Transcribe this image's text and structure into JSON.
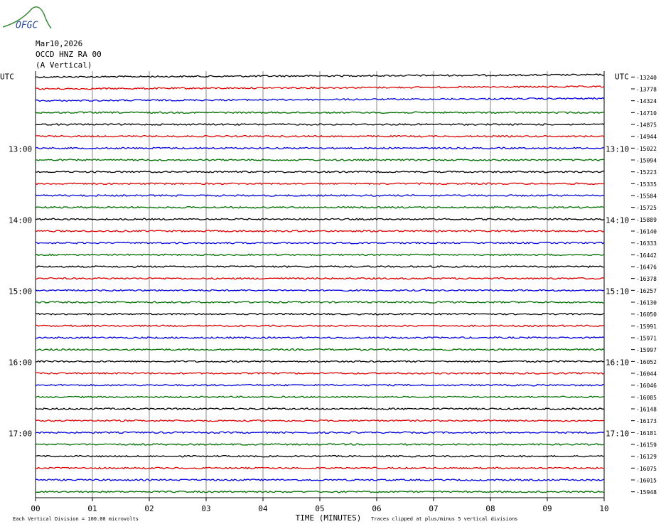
{
  "header": {
    "logo": "OFGC",
    "date": "Mar10,2026",
    "station": "OCCD HNZ RA 00",
    "component": "(A Vertical)"
  },
  "left_labels": [
    "UTC",
    "13:00",
    "14:00",
    "15:00",
    "16:00",
    "17:00"
  ],
  "right_labels": [
    "UTC",
    "13:10",
    "14:10",
    "15:10",
    "16:10",
    "17:10"
  ],
  "offsets": [
    "-13240",
    "-13778",
    "-14324",
    "-14710",
    "-14875",
    "-14944",
    "-15022",
    "-15094",
    "-15223",
    "-15335",
    "-15504",
    "-15725",
    "-15889",
    "-16140",
    "-16333",
    "-16442",
    "-16476",
    "-16378",
    "-16257",
    "-16130",
    "-16050",
    "-15991",
    "-15971",
    "-15997",
    "-16052",
    "-16044",
    "-16046",
    "-16085",
    "-16148",
    "-16173",
    "-16181",
    "-16159",
    "-16129",
    "-16075",
    "-16015",
    "-15948"
  ],
  "x_ticks": [
    "00",
    "01",
    "02",
    "03",
    "04",
    "05",
    "06",
    "07",
    "08",
    "09",
    "10"
  ],
  "x_label": "TIME (MINUTES)",
  "footer_left": "Each Vertical Division =  100.00 microvolts",
  "footer_right": "Traces clipped at plus/minus 5 vertical divisions"
}
